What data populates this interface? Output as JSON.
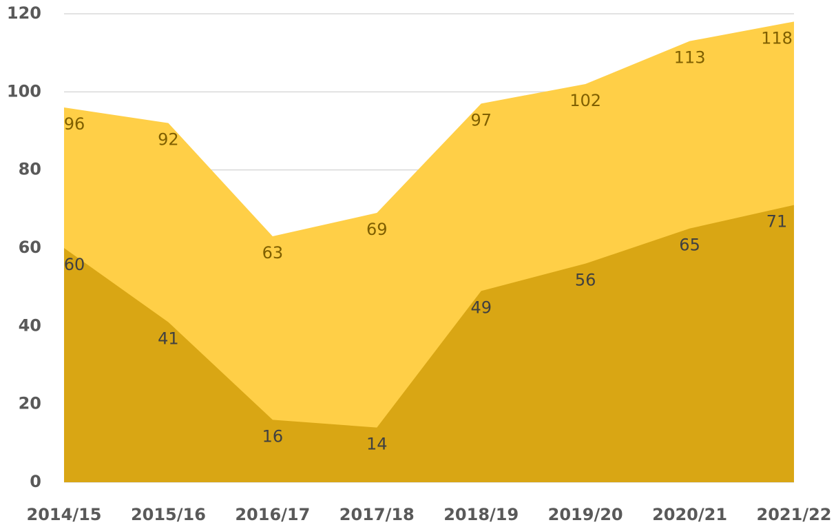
{
  "chart_data": {
    "type": "area",
    "stacked": false,
    "categories": [
      "2014/15",
      "2015/16",
      "2016/17",
      "2017/18",
      "2018/19",
      "2019/20",
      "2020/21",
      "2021/22"
    ],
    "series": [
      {
        "color": "#ffcf47",
        "label_color": "#7f5f00",
        "values": [
          96,
          92,
          63,
          69,
          97,
          102,
          113,
          118
        ]
      },
      {
        "color": "#d9a614",
        "label_color": "#404040",
        "values": [
          60,
          41,
          16,
          14,
          49,
          56,
          65,
          71
        ]
      }
    ],
    "ylim": [
      0,
      120
    ],
    "yticks": [
      0,
      20,
      40,
      60,
      80,
      100,
      120
    ],
    "grid": true
  }
}
